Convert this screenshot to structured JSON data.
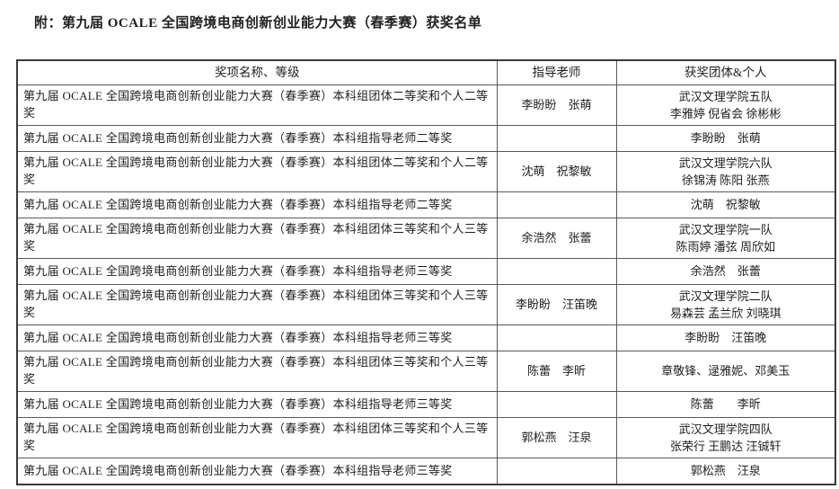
{
  "page": {
    "title": "附：第九届 OCALE 全国跨境电商创新创业能力大赛（春季赛）获奖名单"
  },
  "colors": {
    "background": "#ffffff",
    "text": "#1f1f1f",
    "outer_border": "#3a3a3a",
    "inner_border": "#595959"
  },
  "table": {
    "headers": [
      "奖项名称、等级",
      "指导老师",
      "获奖团体&个人"
    ],
    "rows": [
      {
        "award": "第九届 OCALE 全国跨境电商创新创业能力大赛（春季赛）本科组团体二等奖和个人二等奖",
        "teachers": "李盼盼　张萌",
        "winners": [
          "武汉文理学院五队",
          "李雅婷 倪省会 徐彬彬"
        ],
        "tall": true
      },
      {
        "award": "第九届 OCALE 全国跨境电商创新创业能力大赛（春季赛）本科组指导老师二等奖",
        "teachers": "",
        "winners": [
          "李盼盼　张萌"
        ],
        "tall": false
      },
      {
        "award": "第九届 OCALE 全国跨境电商创新创业能力大赛（春季赛）本科组团体二等奖和个人二等奖",
        "teachers": "沈萌　祝黎敏",
        "winners": [
          "武汉文理学院六队",
          "徐锦涛 陈阳 张燕"
        ],
        "tall": true
      },
      {
        "award": "第九届 OCALE 全国跨境电商创新创业能力大赛（春季赛）本科组指导老师二等奖",
        "teachers": "",
        "winners": [
          "沈萌　祝黎敏"
        ],
        "tall": false
      },
      {
        "award": "第九届 OCALE 全国跨境电商创新创业能力大赛（春季赛）本科组团体三等奖和个人三等奖",
        "teachers": "余浩然　张蕾",
        "winners": [
          "武汉文理学院一队",
          "陈雨婷 潘弦 周欣如"
        ],
        "tall": true
      },
      {
        "award": "第九届 OCALE 全国跨境电商创新创业能力大赛（春季赛）本科组指导老师三等奖",
        "teachers": "",
        "winners": [
          "余浩然　张蕾"
        ],
        "tall": false
      },
      {
        "award": "第九届 OCALE 全国跨境电商创新创业能力大赛（春季赛）本科组团体三等奖和个人三等奖",
        "teachers": "李盼盼　汪笛晚",
        "winners": [
          "武汉文理学院二队",
          "易森芸 孟兰欣 刘晓琪"
        ],
        "tall": true
      },
      {
        "award": "第九届 OCALE 全国跨境电商创新创业能力大赛（春季赛）本科组指导老师三等奖",
        "teachers": "",
        "winners": [
          "李盼盼　汪笛晚"
        ],
        "tall": false
      },
      {
        "award": "第九届 OCALE 全国跨境电商创新创业能力大赛（春季赛）本科组团体三等奖和个人三等奖",
        "teachers": "陈蕾　李昕",
        "winners": [
          "章敬锋、逯雅妮、邓美玉"
        ],
        "tall": true
      },
      {
        "award": "第九届 OCALE 全国跨境电商创新创业能力大赛（春季赛）本科组指导老师三等奖",
        "teachers": "",
        "winners": [
          "陈蕾　　李昕"
        ],
        "tall": false
      },
      {
        "award": "第九届 OCALE 全国跨境电商创新创业能力大赛（春季赛）本科组团体三等奖和个人三等奖",
        "teachers": "郭松燕　汪泉",
        "winners": [
          "武汉文理学院四队",
          "张荣行 王鹏达 汪铖轩"
        ],
        "tall": true
      },
      {
        "award": "第九届 OCALE 全国跨境电商创新创业能力大赛（春季赛）本科组指导老师三等奖",
        "teachers": "",
        "winners": [
          "郭松燕　汪泉"
        ],
        "tall": false
      }
    ]
  }
}
